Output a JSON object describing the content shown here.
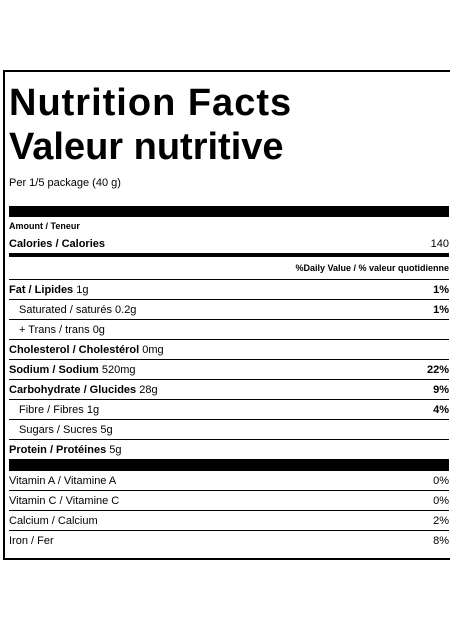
{
  "header": {
    "title": "Nutrition Facts",
    "title_fr": "Valeur nutritive",
    "serving": "Per 1/5 package (40 g)"
  },
  "amount_label": "Amount / Teneur",
  "calories": {
    "label": "Calories / Calories",
    "value": 140
  },
  "daily_value_label": "%Daily Value / % valeur quotidienne",
  "nutrients": [
    {
      "name": "Fat / Lipides",
      "amount": "1g",
      "dv": "1%"
    },
    {
      "name": "Saturated / saturés",
      "amount": "0.2g",
      "dv": "1%"
    },
    {
      "name": "+ Trans / trans",
      "amount": "0g"
    },
    {
      "name": "Cholesterol / Cholestérol",
      "amount": "0mg"
    },
    {
      "name": "Sodium / Sodium",
      "amount": "520mg",
      "dv": "22%"
    },
    {
      "name": "Carbohydrate / Glucides",
      "amount": "28g",
      "dv": "9%"
    },
    {
      "name": "Fibre / Fibres",
      "amount": "1g",
      "dv": "4%"
    },
    {
      "name": "Sugars / Sucres",
      "amount": "5g"
    },
    {
      "name": "Protein / Protéines",
      "amount": "5g"
    }
  ],
  "vitamins": [
    {
      "name": "Vitamin A / Vitamine A",
      "dv": "0%"
    },
    {
      "name": "Vitamin C / Vitamine C",
      "dv": "0%"
    },
    {
      "name": "Calcium / Calcium",
      "dv": "2%"
    },
    {
      "name": "Iron / Fer",
      "dv": "8%"
    }
  ]
}
